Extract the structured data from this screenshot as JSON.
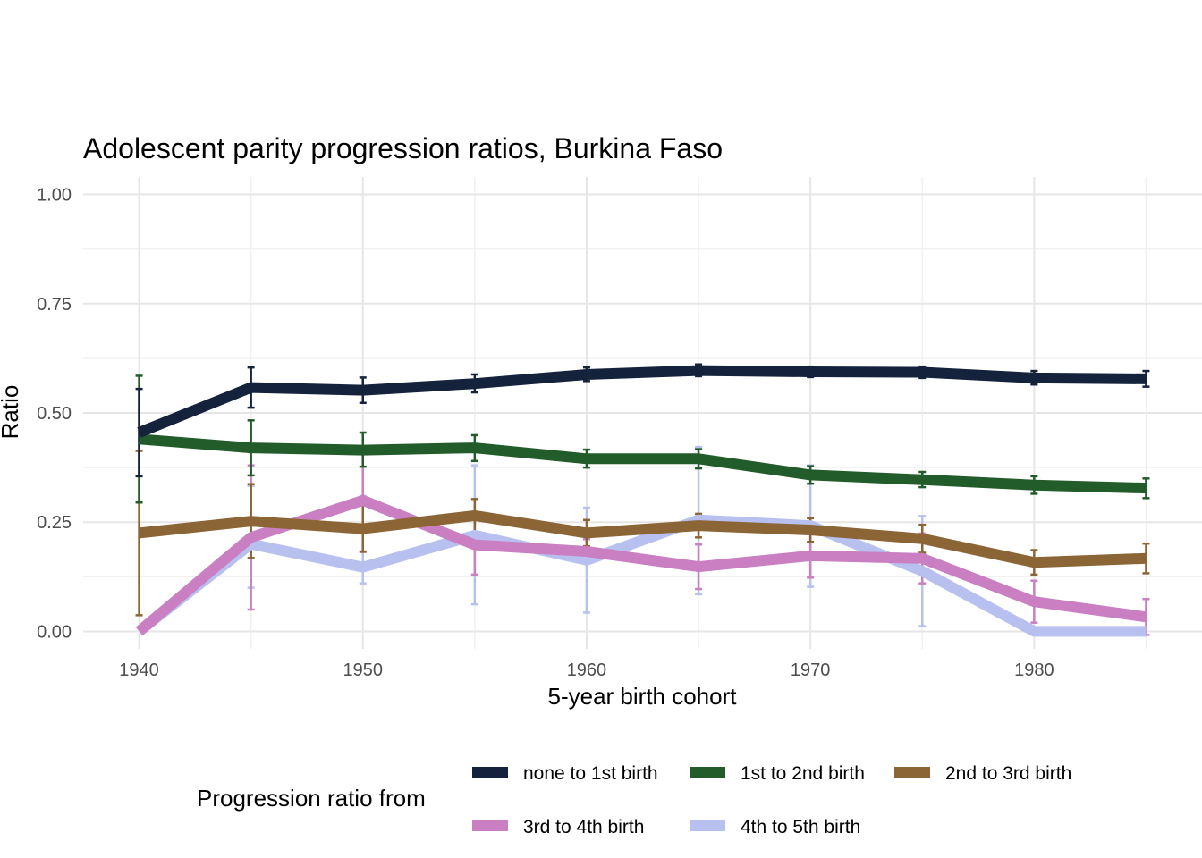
{
  "chart_data": {
    "type": "line",
    "title": "Adolescent parity progression ratios,  Burkina Faso",
    "xlabel": "5-year birth cohort",
    "ylabel": "Ratio",
    "x": [
      1940,
      1945,
      1950,
      1955,
      1960,
      1965,
      1970,
      1975,
      1980,
      1985
    ],
    "xlim": [
      1937.5,
      1987.5
    ],
    "ylim": [
      -0.04,
      1.04
    ],
    "x_ticks": [
      1940,
      1950,
      1960,
      1970,
      1980
    ],
    "x_tick_labels": [
      "1940",
      "1950",
      "1960",
      "1970",
      "1980"
    ],
    "y_ticks": [
      0,
      0.25,
      0.5,
      0.75,
      1.0
    ],
    "y_tick_labels": [
      "0.00",
      "0.25",
      "0.50",
      "0.75",
      "1.00"
    ],
    "grid": true,
    "legend_title": "Progression ratio from",
    "legend_position": "bottom",
    "series": [
      {
        "name": "none to 1st birth",
        "color": "#15223b",
        "values": [
          0.455,
          0.558,
          0.552,
          0.567,
          0.588,
          0.597,
          0.594,
          0.593,
          0.58,
          0.578
        ],
        "lower": [
          0.355,
          0.512,
          0.523,
          0.547,
          0.573,
          0.584,
          0.582,
          0.58,
          0.565,
          0.56
        ],
        "upper": [
          0.555,
          0.604,
          0.581,
          0.588,
          0.604,
          0.611,
          0.606,
          0.606,
          0.596,
          0.596
        ]
      },
      {
        "name": "1st to 2nd birth",
        "color": "#235c2b",
        "values": [
          0.44,
          0.42,
          0.415,
          0.42,
          0.395,
          0.395,
          0.358,
          0.347,
          0.335,
          0.328
        ],
        "lower": [
          0.295,
          0.357,
          0.377,
          0.39,
          0.375,
          0.373,
          0.338,
          0.33,
          0.315,
          0.305
        ],
        "upper": [
          0.585,
          0.483,
          0.455,
          0.449,
          0.416,
          0.417,
          0.378,
          0.365,
          0.355,
          0.35
        ]
      },
      {
        "name": "2nd to 3rd birth",
        "color": "#8b6535",
        "values": [
          0.225,
          0.252,
          0.235,
          0.265,
          0.225,
          0.242,
          0.232,
          0.212,
          0.158,
          0.167
        ],
        "lower": [
          0.037,
          0.168,
          0.182,
          0.227,
          0.195,
          0.215,
          0.205,
          0.18,
          0.13,
          0.133
        ],
        "upper": [
          0.413,
          0.337,
          0.289,
          0.303,
          0.255,
          0.269,
          0.259,
          0.244,
          0.186,
          0.201
        ]
      },
      {
        "name": "3rd to 4th birth",
        "color": "#c97fc2",
        "values": [
          0.0,
          0.215,
          0.3,
          0.198,
          0.183,
          0.148,
          0.173,
          0.167,
          0.068,
          0.033
        ],
        "lower": [
          0.0,
          0.05,
          0.183,
          0.13,
          0.155,
          0.097,
          0.123,
          0.11,
          0.02,
          -0.008
        ],
        "upper": [
          0.0,
          0.38,
          0.412,
          0.266,
          0.211,
          0.199,
          0.223,
          0.224,
          0.116,
          0.074
        ]
      },
      {
        "name": "4th to 5th birth",
        "color": "#b7c0ef",
        "values": [
          0.0,
          0.2,
          0.147,
          0.22,
          0.163,
          0.255,
          0.242,
          0.138,
          0.0,
          0.0
        ],
        "lower": [
          0.0,
          0.1,
          0.11,
          0.062,
          0.043,
          0.085,
          0.102,
          0.012,
          0.0,
          0.0
        ],
        "upper": [
          0.0,
          0.333,
          0.31,
          0.38,
          0.283,
          0.422,
          0.38,
          0.264,
          0.0,
          0.0
        ]
      }
    ]
  }
}
